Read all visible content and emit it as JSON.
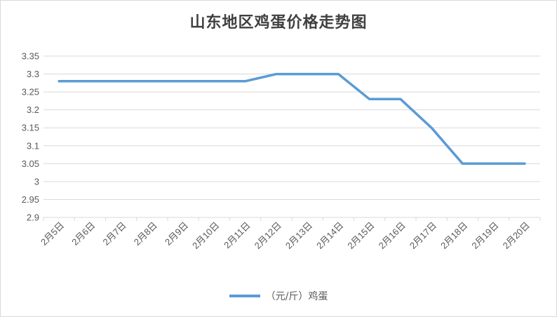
{
  "chart_data": {
    "type": "line",
    "title": "山东地区鸡蛋价格走势图",
    "categories": [
      "2月5日",
      "2月6日",
      "2月7日",
      "2月8日",
      "2月9日",
      "2月10日",
      "2月11日",
      "2月12日",
      "2月13日",
      "2月14日",
      "2月15日",
      "2月16日",
      "2月17日",
      "2月18日",
      "2月19日",
      "2月20日"
    ],
    "series": [
      {
        "name": "（元/斤）鸡蛋",
        "values": [
          3.28,
          3.28,
          3.28,
          3.28,
          3.28,
          3.28,
          3.28,
          3.3,
          3.3,
          3.3,
          3.23,
          3.23,
          3.15,
          3.05,
          3.05,
          3.05
        ],
        "color": "#5b9bd5"
      }
    ],
    "y_ticks": [
      "3.35",
      "3.3",
      "3.25",
      "3.2",
      "3.15",
      "3.1",
      "3.05",
      "3",
      "2.95",
      "2.9"
    ],
    "ylim": [
      2.9,
      3.35
    ],
    "grid": true,
    "legend_position": "bottom",
    "gridline_color": "#d9d9d9"
  }
}
